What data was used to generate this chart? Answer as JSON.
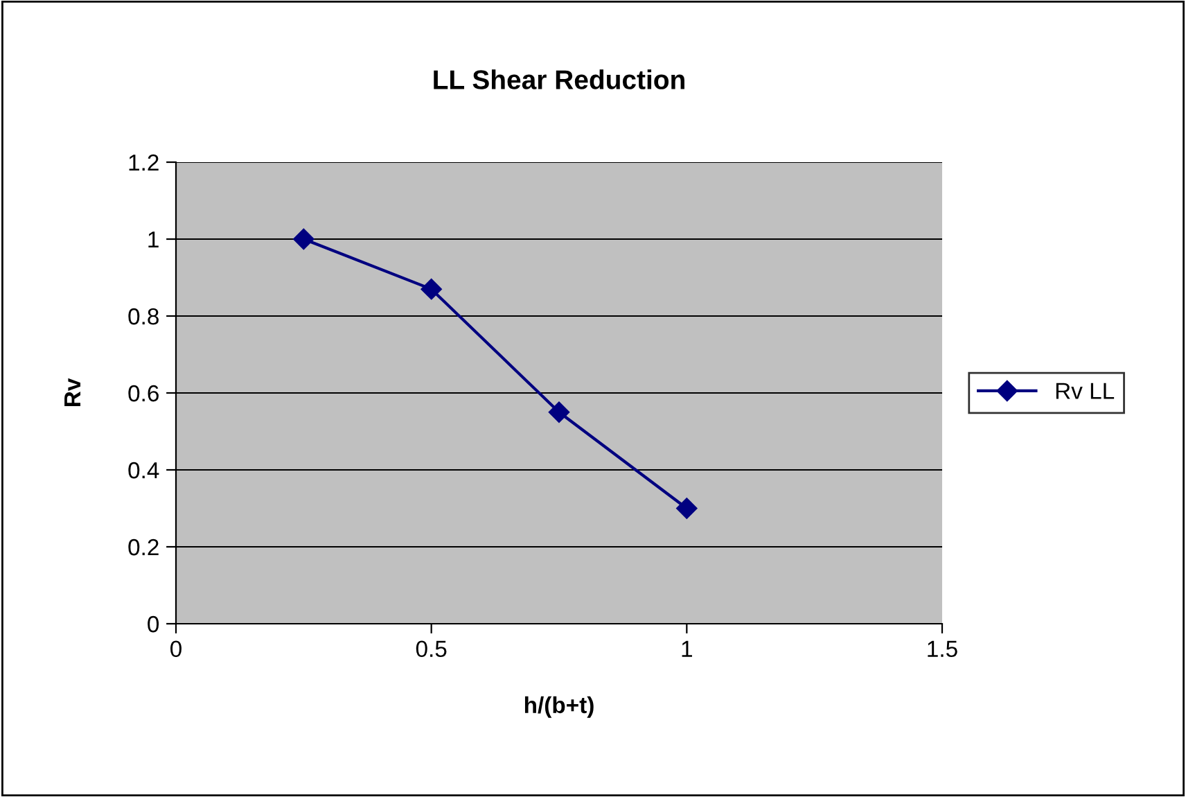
{
  "chart_data": {
    "type": "line",
    "title": "LL Shear Reduction",
    "xlabel": "h/(b+t)",
    "ylabel": "Rv",
    "x": [
      0.25,
      0.5,
      0.75,
      1
    ],
    "series": [
      {
        "name": "Rv LL",
        "color": "#000080",
        "values": [
          1.0,
          0.87,
          0.55,
          0.3
        ]
      }
    ],
    "xlim": [
      0,
      1.5
    ],
    "xticks": [
      0,
      0.5,
      1,
      1.5
    ],
    "ylim": [
      0,
      1.2
    ],
    "yticks": [
      0,
      0.2,
      0.4,
      0.6,
      0.8,
      1,
      1.2
    ],
    "grid": "y",
    "legend": "right",
    "marker": "diamond",
    "line_style": "solid"
  }
}
